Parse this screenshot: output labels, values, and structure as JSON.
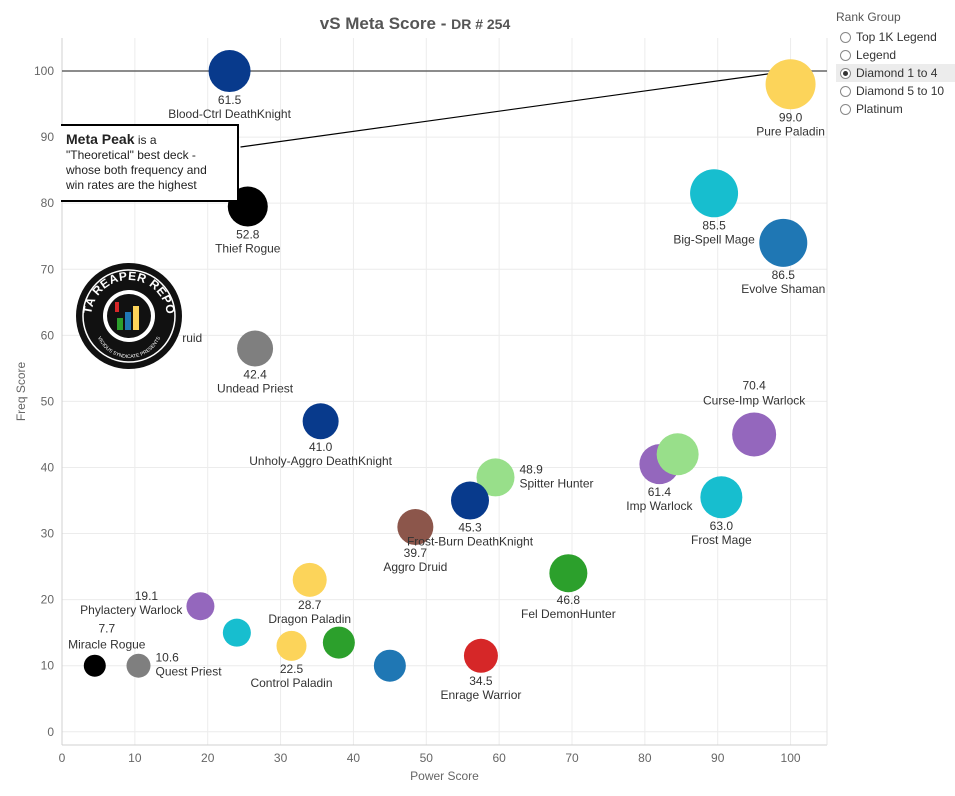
{
  "title": {
    "main": "vS Meta Score",
    "sep": " - ",
    "sub": "DR # 254"
  },
  "rank_group": {
    "title": "Rank Group",
    "options": [
      "Top 1K Legend",
      "Legend",
      "Diamond 1 to 4",
      "Diamond 5 to 10",
      "Platinum"
    ],
    "selected": "Diamond 1 to 4"
  },
  "annotation": {
    "bold": "Meta Peak",
    "line1": " is a",
    "line2": "\"Theoretical\" best deck -",
    "line3": "whose both frequency and",
    "line4": "win rates are the highest"
  },
  "logo": {
    "text_top": "DATA REAPER REPORT",
    "text_bottom": "VICIOUS SYNDICATE PRESENTS"
  },
  "chart_data": {
    "type": "scatter",
    "title": "vS Meta Score - DR # 254",
    "xlabel": "Power Score",
    "ylabel": "Freq Score",
    "xlim": [
      0,
      105
    ],
    "ylim": [
      -2,
      105
    ],
    "xticks": [
      0,
      10,
      20,
      30,
      40,
      50,
      60,
      70,
      80,
      90,
      100
    ],
    "yticks": [
      0,
      10,
      20,
      30,
      40,
      50,
      60,
      70,
      80,
      90,
      100
    ],
    "grid": true,
    "reference_line": {
      "y": 100
    },
    "meta_peak_arrow": {
      "from": [
        24.5,
        88.5
      ],
      "to": [
        100,
        100
      ]
    },
    "points": [
      {
        "x": 23,
        "y": 100,
        "r": 21,
        "color": "#083a8c",
        "value": "61.5",
        "name": "Blood-Ctrl DeathKnight",
        "label": "below"
      },
      {
        "x": 100,
        "y": 98,
        "r": 25,
        "color": "#fcd45a",
        "value": "99.0",
        "name": "Pure Paladin",
        "label": "below"
      },
      {
        "x": 25.5,
        "y": 79.5,
        "r": 20,
        "color": "#000000",
        "value": "52.8",
        "name": "Thief Rogue",
        "label": "below"
      },
      {
        "x": 89.5,
        "y": 81.5,
        "r": 24,
        "color": "#17becf",
        "value": "85.5",
        "name": "Big-Spell Mage",
        "label": "below"
      },
      {
        "x": 99,
        "y": 74,
        "r": 24,
        "color": "#1f77b4",
        "value": "86.5",
        "name": "Evolve Shaman",
        "label": "below"
      },
      {
        "x": 26.5,
        "y": 58,
        "r": 18,
        "color": "#7f7f7f",
        "value": "42.4",
        "name": "Undead Priest",
        "label": "below"
      },
      {
        "x": 35.5,
        "y": 47,
        "r": 18,
        "color": "#083a8c",
        "value": "41.0",
        "name": "Unholy-Aggro DeathKnight",
        "label": "below"
      },
      {
        "x": 95,
        "y": 45,
        "r": 22,
        "color": "#9467bd",
        "value": "70.4",
        "name": "Curse-Imp Warlock",
        "label": "above"
      },
      {
        "x": 82,
        "y": 40.5,
        "r": 20,
        "color": "#9467bd",
        "value": "61.4",
        "name": "Imp Warlock",
        "label": "below"
      },
      {
        "x": 84.5,
        "y": 42,
        "r": 21,
        "color": "#98df8a",
        "value": "",
        "name": "",
        "label": "none"
      },
      {
        "x": 90.5,
        "y": 35.5,
        "r": 21,
        "color": "#17becf",
        "value": "63.0",
        "name": "Frost Mage",
        "label": "below"
      },
      {
        "x": 59.5,
        "y": 38.5,
        "r": 19,
        "color": "#98df8a",
        "value": "48.9",
        "name": "Spitter Hunter",
        "label": "right"
      },
      {
        "x": 56,
        "y": 35,
        "r": 19,
        "color": "#083a8c",
        "value": "45.3",
        "name": "Frost-Burn DeathKnight",
        "label": "below"
      },
      {
        "x": 48.5,
        "y": 31,
        "r": 18,
        "color": "#8c564b",
        "value": "39.7",
        "name": "Aggro Druid",
        "label": "below"
      },
      {
        "x": 69.5,
        "y": 24,
        "r": 19,
        "color": "#2ca02c",
        "value": "46.8",
        "name": "Fel DemonHunter",
        "label": "below"
      },
      {
        "x": 34,
        "y": 23,
        "r": 17,
        "color": "#fcd45a",
        "value": "28.7",
        "name": "Dragon Paladin",
        "label": "below"
      },
      {
        "x": 19,
        "y": 19,
        "r": 14,
        "color": "#9467bd",
        "value": "19.1",
        "name": "Phylactery Warlock",
        "label": "left"
      },
      {
        "x": 24,
        "y": 15,
        "r": 14,
        "color": "#17becf",
        "value": "",
        "name": "",
        "label": "none"
      },
      {
        "x": 31.5,
        "y": 13,
        "r": 15,
        "color": "#fcd45a",
        "value": "22.5",
        "name": "Control Paladin",
        "label": "below"
      },
      {
        "x": 38,
        "y": 13.5,
        "r": 16,
        "color": "#2ca02c",
        "value": "",
        "name": "",
        "label": "none"
      },
      {
        "x": 45,
        "y": 10,
        "r": 16,
        "color": "#1f77b4",
        "value": "",
        "name": "",
        "label": "none"
      },
      {
        "x": 57.5,
        "y": 11.5,
        "r": 17,
        "color": "#d62728",
        "value": "34.5",
        "name": "Enrage Warrior",
        "label": "below"
      },
      {
        "x": 4.5,
        "y": 10,
        "r": 11,
        "color": "#000000",
        "value": "7.7",
        "name": "Miracle Rogue",
        "label": "above-left"
      },
      {
        "x": 10.5,
        "y": 10,
        "r": 12,
        "color": "#7f7f7f",
        "value": "10.6",
        "name": "Quest Priest",
        "label": "right"
      }
    ],
    "hidden_label": {
      "text": "ruid",
      "x": 16.5,
      "y": 59
    }
  }
}
